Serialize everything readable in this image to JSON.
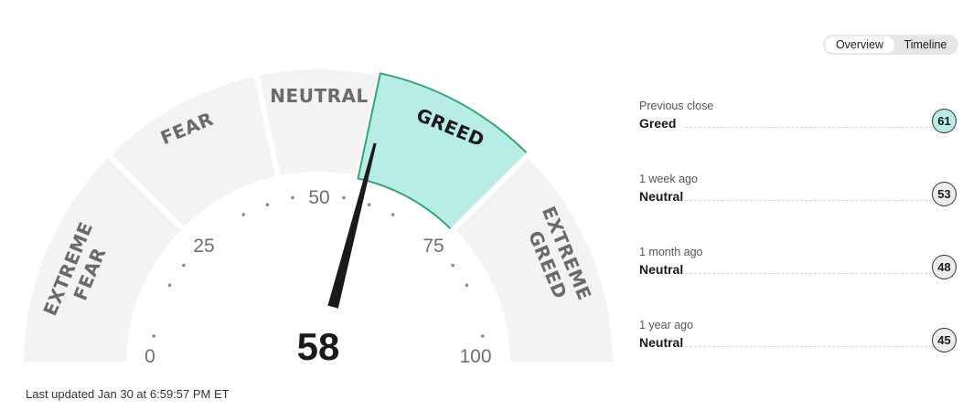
{
  "gauge": {
    "value": 58,
    "value_text": "58",
    "active_segment": "greed",
    "segments": {
      "extreme_fear": [
        "EXTREME",
        "FEAR"
      ],
      "fear": "FEAR",
      "neutral": "NEUTRAL",
      "greed": "GREED",
      "extreme_greed": [
        "EXTREME",
        "GREED"
      ]
    },
    "scale_labels": [
      "0",
      "25",
      "50",
      "75",
      "100"
    ],
    "colors": {
      "active_fill": "#b8ece6",
      "active_border": "#3aa275",
      "segment_fill": "#f3f3f3",
      "needle": "#1a1a1a"
    }
  },
  "last_updated": "Last updated Jan 30 at 6:59:57 PM ET",
  "view_toggle": {
    "overview": "Overview",
    "timeline": "Timeline",
    "selected": "Overview"
  },
  "history": [
    {
      "period": "Previous close",
      "rating": "Greed",
      "value": "61"
    },
    {
      "period": "1 week ago",
      "rating": "Neutral",
      "value": "53"
    },
    {
      "period": "1 month ago",
      "rating": "Neutral",
      "value": "48"
    },
    {
      "period": "1 year ago",
      "rating": "Neutral",
      "value": "45"
    }
  ]
}
